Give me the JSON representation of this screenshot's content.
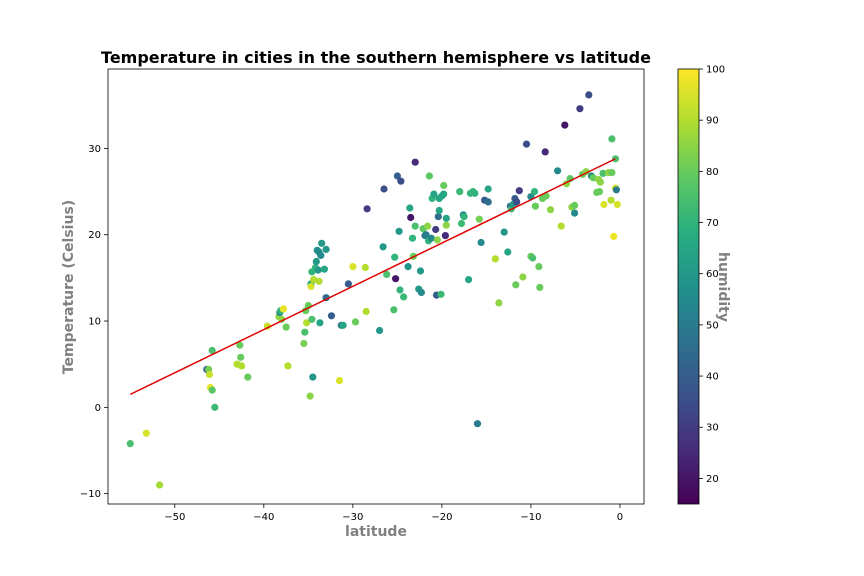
{
  "chart_data": {
    "type": "scatter",
    "title": "Temperature in cities in the southern hemisphere vs latitude",
    "xlabel": "latitude",
    "ylabel": "Temperature (Celsius)",
    "colorbar_label": "humidity",
    "xlim": [
      -57.5,
      2.7
    ],
    "ylim": [
      -11.2,
      39.2
    ],
    "xticks": [
      -50,
      -40,
      -30,
      -20,
      -10,
      0
    ],
    "xtick_labels": [
      "−50",
      "−40",
      "−30",
      "−20",
      "−10",
      "0"
    ],
    "yticks": [
      -10,
      0,
      10,
      20,
      30
    ],
    "ytick_labels": [
      "−10",
      "0",
      "10",
      "20",
      "30"
    ],
    "colorbar": {
      "colormap": "viridis",
      "range": [
        15,
        100
      ],
      "ticks": [
        20,
        30,
        40,
        50,
        60,
        70,
        80,
        90,
        100
      ],
      "tick_labels": [
        "20",
        "30",
        "40",
        "50",
        "60",
        "70",
        "80",
        "90",
        "100"
      ]
    },
    "regression_line": {
      "color": "#dd0000",
      "x": [
        -55,
        -0.5
      ],
      "y": [
        1.5,
        28.8
      ]
    },
    "points": [
      [
        -55,
        -4.2,
        75
      ],
      [
        -53.2,
        -3.0,
        95
      ],
      [
        -51.7,
        -9.0,
        88
      ],
      [
        -46.4,
        4.4,
        40
      ],
      [
        -46.2,
        4.4,
        82
      ],
      [
        -46.1,
        3.8,
        93
      ],
      [
        -46.0,
        2.3,
        97
      ],
      [
        -45.8,
        2.0,
        78
      ],
      [
        -45.5,
        0.0,
        72
      ],
      [
        -45.8,
        6.6,
        75
      ],
      [
        -43.0,
        5.0,
        90
      ],
      [
        -42.7,
        7.2,
        80
      ],
      [
        -42.6,
        5.8,
        80
      ],
      [
        -42.5,
        4.8,
        90
      ],
      [
        -41.8,
        3.5,
        80
      ],
      [
        -39.6,
        9.4,
        93
      ],
      [
        -38.3,
        10.5,
        85
      ],
      [
        -38.2,
        11.0,
        55
      ],
      [
        -38.1,
        11.2,
        70
      ],
      [
        -38.0,
        10.2,
        85
      ],
      [
        -37.8,
        11.4,
        97
      ],
      [
        -37.5,
        9.3,
        80
      ],
      [
        -37.3,
        4.8,
        90
      ],
      [
        -35.5,
        7.4,
        82
      ],
      [
        -35.4,
        8.7,
        75
      ],
      [
        -35.3,
        11.2,
        80
      ],
      [
        -35.2,
        9.8,
        90
      ],
      [
        -35.0,
        11.8,
        80
      ],
      [
        -34.8,
        1.3,
        85
      ],
      [
        -34.7,
        14.3,
        65
      ],
      [
        -34.7,
        14.0,
        95
      ],
      [
        -34.6,
        15.7,
        70
      ],
      [
        -34.6,
        10.2,
        75
      ],
      [
        -34.5,
        3.5,
        60
      ],
      [
        -34.4,
        14.8,
        90
      ],
      [
        -34.2,
        16.2,
        70
      ],
      [
        -34.1,
        16.9,
        60
      ],
      [
        -34.0,
        18.2,
        58
      ],
      [
        -33.8,
        18.0,
        55
      ],
      [
        -33.9,
        15.9,
        60
      ],
      [
        -33.8,
        14.6,
        90
      ],
      [
        -33.7,
        9.8,
        65
      ],
      [
        -33.6,
        17.6,
        55
      ],
      [
        -33.5,
        19.0,
        60
      ],
      [
        -33.2,
        16.0,
        65
      ],
      [
        -33.0,
        18.3,
        60
      ],
      [
        -33.0,
        12.7,
        45
      ],
      [
        -32.4,
        10.6,
        40
      ],
      [
        -31.3,
        9.5,
        50
      ],
      [
        -31.1,
        9.5,
        65
      ],
      [
        -31.5,
        3.1,
        95
      ],
      [
        -30.5,
        14.3,
        40
      ],
      [
        -30.0,
        16.3,
        95
      ],
      [
        -29.7,
        9.9,
        80
      ],
      [
        -28.5,
        11.1,
        90
      ],
      [
        -28.6,
        16.2,
        90
      ],
      [
        -28.4,
        23.0,
        30
      ],
      [
        -27.0,
        8.9,
        60
      ],
      [
        -26.6,
        18.6,
        60
      ],
      [
        -26.5,
        25.3,
        35
      ],
      [
        -26.2,
        15.4,
        75
      ],
      [
        -25.4,
        11.3,
        75
      ],
      [
        -25.3,
        17.4,
        70
      ],
      [
        -25.2,
        14.9,
        20
      ],
      [
        -25.0,
        26.8,
        40
      ],
      [
        -24.8,
        20.4,
        60
      ],
      [
        -24.7,
        13.6,
        70
      ],
      [
        -24.6,
        26.2,
        35
      ],
      [
        -24.3,
        12.8,
        72
      ],
      [
        -23.8,
        16.3,
        60
      ],
      [
        -23.6,
        23.1,
        65
      ],
      [
        -23.5,
        22.0,
        20
      ],
      [
        -23.3,
        19.6,
        70
      ],
      [
        -23.2,
        17.5,
        80
      ],
      [
        -23.0,
        21.0,
        75
      ],
      [
        -23.0,
        28.4,
        25
      ],
      [
        -22.6,
        13.7,
        60
      ],
      [
        -22.4,
        15.8,
        60
      ],
      [
        -22.3,
        13.3,
        55
      ],
      [
        -22.1,
        20.7,
        78
      ],
      [
        -21.9,
        19.9,
        50
      ],
      [
        -21.8,
        20.0,
        50
      ],
      [
        -21.6,
        21.0,
        85
      ],
      [
        -21.5,
        19.3,
        70
      ],
      [
        -21.4,
        26.8,
        78
      ],
      [
        -21.2,
        19.6,
        55
      ],
      [
        -21.1,
        24.2,
        70
      ],
      [
        -20.9,
        24.7,
        65
      ],
      [
        -20.7,
        20.6,
        30
      ],
      [
        -20.6,
        13.0,
        40
      ],
      [
        -20.5,
        19.4,
        85
      ],
      [
        -20.4,
        22.1,
        45
      ],
      [
        -20.3,
        24.2,
        65
      ],
      [
        -20.3,
        22.8,
        65
      ],
      [
        -20.1,
        13.1,
        72
      ],
      [
        -20.0,
        24.5,
        65
      ],
      [
        -19.8,
        24.7,
        65
      ],
      [
        -19.8,
        25.7,
        80
      ],
      [
        -19.6,
        19.9,
        25
      ],
      [
        -19.5,
        21.1,
        85
      ],
      [
        -19.5,
        21.9,
        65
      ],
      [
        -18.0,
        25.0,
        72
      ],
      [
        -17.8,
        21.3,
        72
      ],
      [
        -17.6,
        22.3,
        55
      ],
      [
        -17.5,
        22.1,
        70
      ],
      [
        -17.0,
        14.8,
        65
      ],
      [
        -16.8,
        24.8,
        70
      ],
      [
        -16.5,
        25.0,
        70
      ],
      [
        -16.3,
        24.8,
        70
      ],
      [
        -16.0,
        -1.9,
        50
      ],
      [
        -15.8,
        21.8,
        82
      ],
      [
        -15.6,
        19.1,
        55
      ],
      [
        -15.2,
        24.0,
        40
      ],
      [
        -14.8,
        23.8,
        45
      ],
      [
        -14.8,
        25.3,
        65
      ],
      [
        -14.0,
        17.2,
        90
      ],
      [
        -13.6,
        12.1,
        85
      ],
      [
        -13.0,
        20.3,
        60
      ],
      [
        -12.6,
        18.0,
        65
      ],
      [
        -12.3,
        23.3,
        45
      ],
      [
        -12.2,
        23.0,
        72
      ],
      [
        -12.0,
        23.5,
        60
      ],
      [
        -11.8,
        24.2,
        40
      ],
      [
        -11.7,
        14.2,
        80
      ],
      [
        -11.6,
        23.8,
        35
      ],
      [
        -11.3,
        25.1,
        30
      ],
      [
        -10.9,
        15.1,
        85
      ],
      [
        -10.5,
        30.5,
        35
      ],
      [
        -10.0,
        24.4,
        55
      ],
      [
        -10.0,
        17.5,
        80
      ],
      [
        -9.8,
        17.3,
        75
      ],
      [
        -9.6,
        25.0,
        70
      ],
      [
        -9.5,
        23.3,
        80
      ],
      [
        -9.1,
        16.3,
        80
      ],
      [
        -9.0,
        13.9,
        80
      ],
      [
        -8.7,
        24.2,
        80
      ],
      [
        -8.4,
        29.6,
        25
      ],
      [
        -8.3,
        24.5,
        80
      ],
      [
        -7.8,
        22.9,
        85
      ],
      [
        -7.0,
        27.4,
        55
      ],
      [
        -6.6,
        21.0,
        90
      ],
      [
        -6.2,
        32.7,
        20
      ],
      [
        -6.0,
        25.9,
        85
      ],
      [
        -5.6,
        26.5,
        78
      ],
      [
        -5.4,
        23.2,
        85
      ],
      [
        -5.1,
        23.4,
        80
      ],
      [
        -5.1,
        22.5,
        55
      ],
      [
        -4.5,
        34.6,
        30
      ],
      [
        -4.2,
        27.0,
        80
      ],
      [
        -3.8,
        27.3,
        85
      ],
      [
        -3.5,
        36.2,
        35
      ],
      [
        -3.2,
        26.8,
        55
      ],
      [
        -3.0,
        26.6,
        80
      ],
      [
        -2.6,
        24.9,
        80
      ],
      [
        -2.4,
        26.4,
        85
      ],
      [
        -2.3,
        25.0,
        80
      ],
      [
        -2.2,
        26.1,
        85
      ],
      [
        -1.9,
        27.1,
        75
      ],
      [
        -1.8,
        23.5,
        95
      ],
      [
        -1.3,
        27.2,
        85
      ],
      [
        -1.0,
        24.0,
        90
      ],
      [
        -0.9,
        31.1,
        75
      ],
      [
        -0.9,
        27.2,
        80
      ],
      [
        -0.7,
        19.8,
        98
      ],
      [
        -0.5,
        28.8,
        75
      ],
      [
        -0.5,
        25.4,
        95
      ],
      [
        -0.4,
        25.2,
        50
      ],
      [
        -0.3,
        23.5,
        95
      ]
    ]
  }
}
